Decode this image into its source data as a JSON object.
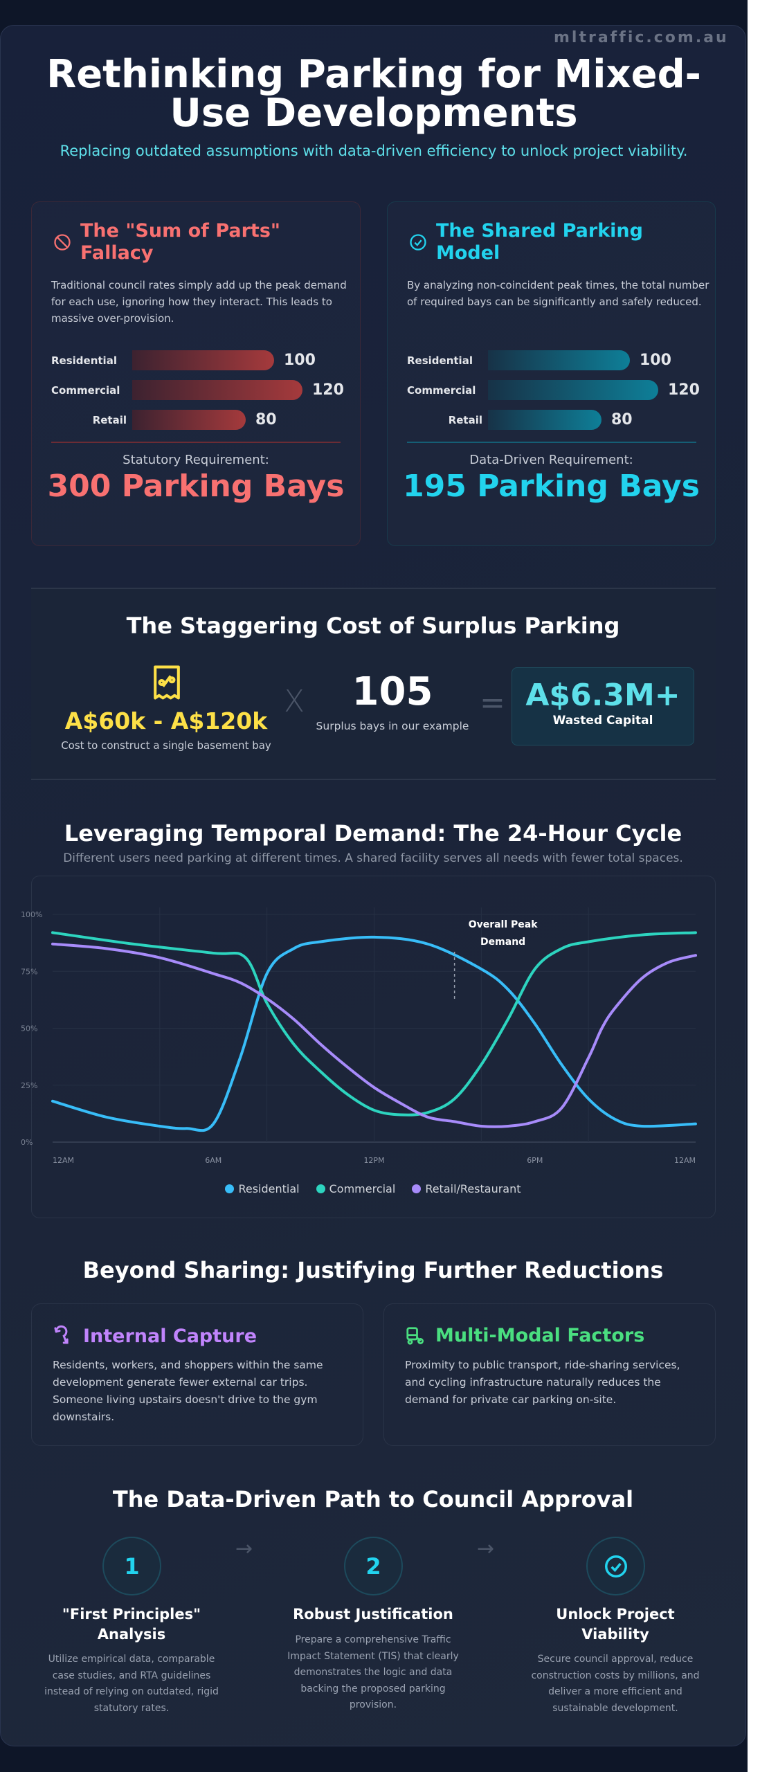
{
  "watermark": "mltraffic.com.au",
  "header": {
    "title": "Rethinking Parking for Mixed-Use Developments",
    "subtitle": "Replacing outdated assumptions with data-driven efficiency to unlock project viability."
  },
  "comparison": {
    "fallacy": {
      "icon": "ban-icon",
      "title": "The \"Sum of Parts\" Fallacy",
      "desc": "Traditional council rates simply add up the peak demand for each use, ignoring how they interact. This leads to massive over-provision.",
      "bars": [
        {
          "label": "Residential",
          "value": 100
        },
        {
          "label": "Commercial",
          "value": 120
        },
        {
          "label": "Retail",
          "value": 80
        }
      ],
      "req_label": "Statutory Requirement:",
      "req_value": "300 Parking Bays",
      "color": "#f87171"
    },
    "shared": {
      "icon": "check-circle-icon",
      "title": "The Shared Parking Model",
      "desc": "By analyzing non-coincident peak times, the total number of required bays can be significantly and safely reduced.",
      "bars": [
        {
          "label": "Residential",
          "value": 100
        },
        {
          "label": "Commercial",
          "value": 120
        },
        {
          "label": "Retail",
          "value": 80
        }
      ],
      "req_label": "Data-Driven Requirement:",
      "req_value": "195 Parking Bays",
      "color": "#22d3ee"
    }
  },
  "cost": {
    "title": "The Staggering Cost of Surplus Parking",
    "unit_cost": "A$60k - A$120k",
    "unit_cost_label": "Cost to construct a single basement bay",
    "times": "X",
    "surplus": "105",
    "surplus_label": "Surplus bays in our example",
    "equals": "=",
    "total": "A$6.3M+",
    "total_label": "Wasted Capital"
  },
  "temporal": {
    "title": "Leveraging Temporal Demand: The 24-Hour Cycle",
    "subtitle": "Different users need parking at different times. A shared facility serves all needs with fewer total spaces."
  },
  "chart_data": {
    "type": "line",
    "title": "",
    "xlabel": "",
    "ylabel": "",
    "x_ticks": [
      "12AM",
      "6AM",
      "12PM",
      "6PM",
      "12AM"
    ],
    "y_ticks": [
      "0%",
      "25%",
      "50%",
      "75%",
      "100%"
    ],
    "xlim": [
      0,
      24
    ],
    "ylim": [
      0,
      100
    ],
    "grid": true,
    "legend": "bottom",
    "annotation": {
      "text": "Overall Peak Demand",
      "x": 15
    },
    "series": [
      {
        "name": "Residential",
        "color": "#38bdf8",
        "x": [
          0,
          2,
          4,
          5,
          6,
          7,
          8,
          9,
          10,
          12,
          14,
          16,
          17,
          18,
          19,
          20,
          21,
          22,
          24
        ],
        "values": [
          18,
          11,
          7,
          6,
          8,
          37,
          74,
          85,
          88,
          90,
          87,
          76,
          67,
          52,
          34,
          19,
          10,
          7,
          8
        ]
      },
      {
        "name": "Commercial",
        "color": "#2dd4bf",
        "x": [
          0,
          3,
          6,
          7.2,
          8,
          9,
          10,
          11,
          12,
          13,
          14,
          15,
          16,
          17,
          18,
          19,
          20,
          22,
          24
        ],
        "values": [
          92,
          87,
          83,
          81,
          61,
          43,
          31,
          21,
          14,
          12,
          13,
          19,
          34,
          54,
          76,
          85,
          88,
          91,
          92
        ]
      },
      {
        "name": "Retail/Restaurant",
        "color": "#a78bfa",
        "x": [
          0,
          2,
          4,
          6,
          7,
          8,
          9,
          10,
          11,
          12,
          13,
          14,
          15,
          16,
          17,
          18,
          19,
          20,
          20.5,
          21,
          22,
          23,
          24
        ],
        "values": [
          87,
          85,
          81,
          74,
          70,
          63,
          54,
          43,
          33,
          24,
          17,
          11,
          9,
          7,
          7,
          9,
          15,
          37,
          50,
          59,
          72,
          79,
          82
        ]
      }
    ]
  },
  "beyond": {
    "title": "Beyond Sharing: Justifying Further Reductions",
    "cards": [
      {
        "icon": "loop-arrow-icon",
        "title": "Internal Capture",
        "desc": "Residents, workers, and shoppers within the same development generate fewer external car trips. Someone living upstairs doesn't drive to the gym downstairs.",
        "color": "#c084fc"
      },
      {
        "icon": "bus-bike-icon",
        "title": "Multi-Modal Factors",
        "desc": "Proximity to public transport, ride-sharing services, and cycling infrastructure naturally reduces the demand for private car parking on-site.",
        "color": "#4ade80"
      }
    ]
  },
  "path": {
    "title": "The Data-Driven Path to Council Approval",
    "steps": [
      {
        "badge": "1",
        "title": "\"First Principles\" Analysis",
        "desc": "Utilize empirical data, comparable case studies, and RTA guidelines instead of relying on outdated, rigid statutory rates."
      },
      {
        "badge": "2",
        "title": "Robust Justification",
        "desc": "Prepare a comprehensive Traffic Impact Statement (TIS) that clearly demonstrates the logic and data backing the proposed parking provision."
      },
      {
        "badge": "check-circle-icon",
        "title": "Unlock Project Viability",
        "desc": "Secure council approval, reduce construction costs by millions, and deliver a more efficient and sustainable development."
      }
    ],
    "arrow": "→"
  }
}
